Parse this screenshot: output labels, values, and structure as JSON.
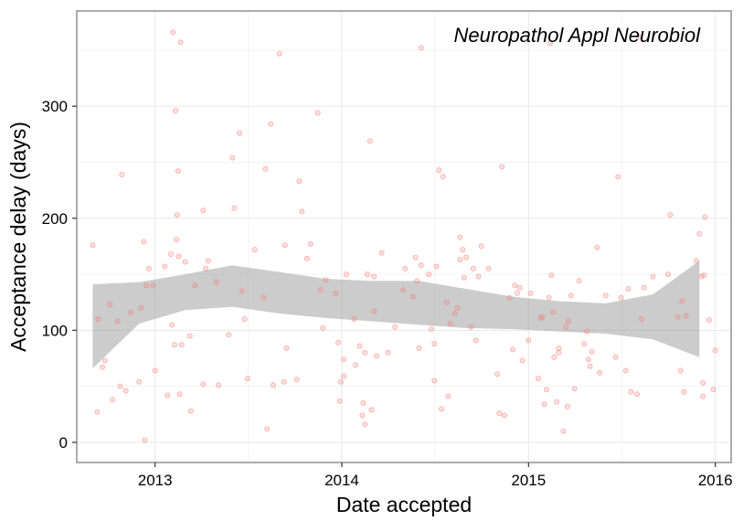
{
  "chart_data": {
    "type": "scatter",
    "annotation": "Neuropathol Appl Neurobiol",
    "xlabel": "Date accepted",
    "ylabel": "Acceptance delay (days)",
    "x_scale": "date",
    "xlim": [
      "2012-08-01",
      "2016-02-01"
    ],
    "ylim": [
      -18,
      385
    ],
    "x_ticks": [
      {
        "value": "2013-01-01",
        "label": "2013"
      },
      {
        "value": "2014-01-01",
        "label": "2014"
      },
      {
        "value": "2015-01-01",
        "label": "2015"
      },
      {
        "value": "2016-01-01",
        "label": "2016"
      }
    ],
    "y_ticks": [
      {
        "value": 0,
        "label": "0"
      },
      {
        "value": 100,
        "label": "100"
      },
      {
        "value": 200,
        "label": "200"
      },
      {
        "value": 300,
        "label": "300"
      }
    ],
    "grid": true,
    "colors": {
      "points": "#f8766d",
      "ribbon": "#999999",
      "grid": "#ebebeb",
      "frame": "#7f7f7f"
    },
    "smooth": {
      "x": [
        "2012-09-01",
        "2012-12-01",
        "2013-03-01",
        "2013-06-01",
        "2013-09-01",
        "2013-12-01",
        "2014-03-01",
        "2014-06-01",
        "2014-09-01",
        "2014-12-01",
        "2015-03-01",
        "2015-06-01",
        "2015-09-01",
        "2015-12-01"
      ],
      "lower": [
        66,
        106,
        118,
        121,
        115,
        111,
        108,
        105,
        102,
        101,
        99,
        97,
        92,
        76
      ],
      "upper": [
        141,
        143,
        150,
        158,
        152,
        146,
        144,
        144,
        137,
        130,
        126,
        124,
        132,
        162
      ]
    },
    "points": [
      {
        "x": "2012-09-01",
        "y": 176
      },
      {
        "x": "2012-09-10",
        "y": 27
      },
      {
        "x": "2012-09-12",
        "y": 110
      },
      {
        "x": "2012-09-20",
        "y": 67
      },
      {
        "x": "2012-09-25",
        "y": 73
      },
      {
        "x": "2012-10-05",
        "y": 123
      },
      {
        "x": "2012-10-10",
        "y": 38
      },
      {
        "x": "2012-10-20",
        "y": 108
      },
      {
        "x": "2012-10-25",
        "y": 50
      },
      {
        "x": "2012-10-28",
        "y": 239
      },
      {
        "x": "2012-11-05",
        "y": 46
      },
      {
        "x": "2012-11-15",
        "y": 116
      },
      {
        "x": "2012-12-01",
        "y": 54
      },
      {
        "x": "2012-12-05",
        "y": 120
      },
      {
        "x": "2012-12-10",
        "y": 179
      },
      {
        "x": "2012-12-12",
        "y": 2
      },
      {
        "x": "2012-12-15",
        "y": 140
      },
      {
        "x": "2012-12-20",
        "y": 155
      },
      {
        "x": "2012-12-28",
        "y": 140
      },
      {
        "x": "2013-01-01",
        "y": 64
      },
      {
        "x": "2013-01-20",
        "y": 157
      },
      {
        "x": "2013-01-25",
        "y": 42
      },
      {
        "x": "2013-02-01",
        "y": 168
      },
      {
        "x": "2013-02-03",
        "y": 105
      },
      {
        "x": "2013-02-05",
        "y": 366
      },
      {
        "x": "2013-02-08",
        "y": 87
      },
      {
        "x": "2013-02-10",
        "y": 296
      },
      {
        "x": "2013-02-12",
        "y": 181
      },
      {
        "x": "2013-02-13",
        "y": 203
      },
      {
        "x": "2013-02-15",
        "y": 242
      },
      {
        "x": "2013-02-16",
        "y": 166
      },
      {
        "x": "2013-02-18",
        "y": 43
      },
      {
        "x": "2013-02-20",
        "y": 357
      },
      {
        "x": "2013-02-22",
        "y": 87
      },
      {
        "x": "2013-03-01",
        "y": 161
      },
      {
        "x": "2013-03-10",
        "y": 95
      },
      {
        "x": "2013-03-12",
        "y": 28
      },
      {
        "x": "2013-03-20",
        "y": 140
      },
      {
        "x": "2013-04-05",
        "y": 207
      },
      {
        "x": "2013-04-05",
        "y": 52
      },
      {
        "x": "2013-04-10",
        "y": 155
      },
      {
        "x": "2013-04-15",
        "y": 162
      },
      {
        "x": "2013-05-01",
        "y": 143
      },
      {
        "x": "2013-05-05",
        "y": 51
      },
      {
        "x": "2013-05-25",
        "y": 96
      },
      {
        "x": "2013-06-01",
        "y": 254
      },
      {
        "x": "2013-06-05",
        "y": 209
      },
      {
        "x": "2013-06-15",
        "y": 276
      },
      {
        "x": "2013-06-20",
        "y": 135
      },
      {
        "x": "2013-06-25",
        "y": 110
      },
      {
        "x": "2013-07-01",
        "y": 57
      },
      {
        "x": "2013-07-15",
        "y": 172
      },
      {
        "x": "2013-08-01",
        "y": 129
      },
      {
        "x": "2013-08-05",
        "y": 244
      },
      {
        "x": "2013-08-08",
        "y": 12
      },
      {
        "x": "2013-08-15",
        "y": 284
      },
      {
        "x": "2013-08-20",
        "y": 51
      },
      {
        "x": "2013-09-01",
        "y": 347
      },
      {
        "x": "2013-09-10",
        "y": 54
      },
      {
        "x": "2013-09-12",
        "y": 176
      },
      {
        "x": "2013-09-15",
        "y": 84
      },
      {
        "x": "2013-10-05",
        "y": 56
      },
      {
        "x": "2013-10-10",
        "y": 233
      },
      {
        "x": "2013-10-15",
        "y": 206
      },
      {
        "x": "2013-10-25",
        "y": 164
      },
      {
        "x": "2013-11-01",
        "y": 177
      },
      {
        "x": "2013-11-15",
        "y": 294
      },
      {
        "x": "2013-11-20",
        "y": 136
      },
      {
        "x": "2013-11-25",
        "y": 102
      },
      {
        "x": "2013-12-01",
        "y": 145
      },
      {
        "x": "2013-12-20",
        "y": 133
      },
      {
        "x": "2013-12-25",
        "y": 89
      },
      {
        "x": "2013-12-28",
        "y": 37
      },
      {
        "x": "2013-12-30",
        "y": 54
      },
      {
        "x": "2014-01-05",
        "y": 59
      },
      {
        "x": "2014-01-05",
        "y": 74
      },
      {
        "x": "2014-01-10",
        "y": 150
      },
      {
        "x": "2014-01-25",
        "y": 110
      },
      {
        "x": "2014-01-28",
        "y": 69
      },
      {
        "x": "2014-02-05",
        "y": 86
      },
      {
        "x": "2014-02-10",
        "y": 24
      },
      {
        "x": "2014-02-12",
        "y": 35
      },
      {
        "x": "2014-02-15",
        "y": 80
      },
      {
        "x": "2014-02-15",
        "y": 16
      },
      {
        "x": "2014-02-20",
        "y": 150
      },
      {
        "x": "2014-02-25",
        "y": 269
      },
      {
        "x": "2014-02-28",
        "y": 29
      },
      {
        "x": "2014-03-05",
        "y": 117
      },
      {
        "x": "2014-03-05",
        "y": 148
      },
      {
        "x": "2014-03-10",
        "y": 77
      },
      {
        "x": "2014-03-20",
        "y": 169
      },
      {
        "x": "2014-04-01",
        "y": 80
      },
      {
        "x": "2014-04-15",
        "y": 103
      },
      {
        "x": "2014-05-01",
        "y": 136
      },
      {
        "x": "2014-05-05",
        "y": 155
      },
      {
        "x": "2014-05-20",
        "y": 130
      },
      {
        "x": "2014-05-25",
        "y": 165
      },
      {
        "x": "2014-05-28",
        "y": 144
      },
      {
        "x": "2014-06-01",
        "y": 84
      },
      {
        "x": "2014-06-05",
        "y": 158
      },
      {
        "x": "2014-06-05",
        "y": 352
      },
      {
        "x": "2014-06-20",
        "y": 150
      },
      {
        "x": "2014-06-25",
        "y": 101
      },
      {
        "x": "2014-07-01",
        "y": 55
      },
      {
        "x": "2014-07-01",
        "y": 88
      },
      {
        "x": "2014-07-05",
        "y": 157
      },
      {
        "x": "2014-07-10",
        "y": 243
      },
      {
        "x": "2014-07-15",
        "y": 30
      },
      {
        "x": "2014-07-18",
        "y": 237
      },
      {
        "x": "2014-07-25",
        "y": 125
      },
      {
        "x": "2014-07-28",
        "y": 41
      },
      {
        "x": "2014-08-01",
        "y": 106
      },
      {
        "x": "2014-08-10",
        "y": 115
      },
      {
        "x": "2014-08-15",
        "y": 120
      },
      {
        "x": "2014-08-20",
        "y": 183
      },
      {
        "x": "2014-08-20",
        "y": 163
      },
      {
        "x": "2014-08-25",
        "y": 172
      },
      {
        "x": "2014-08-28",
        "y": 147
      },
      {
        "x": "2014-09-01",
        "y": 165
      },
      {
        "x": "2014-09-10",
        "y": 103
      },
      {
        "x": "2014-09-15",
        "y": 155
      },
      {
        "x": "2014-09-20",
        "y": 91
      },
      {
        "x": "2014-09-25",
        "y": 148
      },
      {
        "x": "2014-10-01",
        "y": 175
      },
      {
        "x": "2014-10-15",
        "y": 155
      },
      {
        "x": "2014-11-01",
        "y": 61
      },
      {
        "x": "2014-11-05",
        "y": 26
      },
      {
        "x": "2014-11-10",
        "y": 246
      },
      {
        "x": "2014-11-15",
        "y": 24
      },
      {
        "x": "2014-11-25",
        "y": 129
      },
      {
        "x": "2014-12-01",
        "y": 83
      },
      {
        "x": "2014-12-05",
        "y": 140
      },
      {
        "x": "2014-12-10",
        "y": 133
      },
      {
        "x": "2014-12-15",
        "y": 138
      },
      {
        "x": "2014-12-20",
        "y": 73
      },
      {
        "x": "2015-01-01",
        "y": 91
      },
      {
        "x": "2015-01-05",
        "y": 133
      },
      {
        "x": "2015-01-20",
        "y": 57
      },
      {
        "x": "2015-01-25",
        "y": 111
      },
      {
        "x": "2015-01-28",
        "y": 112
      },
      {
        "x": "2015-02-01",
        "y": 34
      },
      {
        "x": "2015-02-05",
        "y": 47
      },
      {
        "x": "2015-02-10",
        "y": 129
      },
      {
        "x": "2015-02-12",
        "y": 356
      },
      {
        "x": "2015-02-15",
        "y": 149
      },
      {
        "x": "2015-02-18",
        "y": 116
      },
      {
        "x": "2015-02-20",
        "y": 76
      },
      {
        "x": "2015-02-25",
        "y": 36
      },
      {
        "x": "2015-03-01",
        "y": 84
      },
      {
        "x": "2015-03-01",
        "y": 80
      },
      {
        "x": "2015-03-10",
        "y": 10
      },
      {
        "x": "2015-03-15",
        "y": 103
      },
      {
        "x": "2015-03-18",
        "y": 32
      },
      {
        "x": "2015-03-20",
        "y": 108
      },
      {
        "x": "2015-03-25",
        "y": 131
      },
      {
        "x": "2015-04-01",
        "y": 48
      },
      {
        "x": "2015-04-10",
        "y": 144
      },
      {
        "x": "2015-04-20",
        "y": 88
      },
      {
        "x": "2015-04-25",
        "y": 99
      },
      {
        "x": "2015-04-28",
        "y": 74
      },
      {
        "x": "2015-05-01",
        "y": 68
      },
      {
        "x": "2015-05-05",
        "y": 81
      },
      {
        "x": "2015-05-15",
        "y": 174
      },
      {
        "x": "2015-05-20",
        "y": 62
      },
      {
        "x": "2015-06-01",
        "y": 131
      },
      {
        "x": "2015-06-20",
        "y": 76
      },
      {
        "x": "2015-06-25",
        "y": 237
      },
      {
        "x": "2015-07-01",
        "y": 129
      },
      {
        "x": "2015-07-10",
        "y": 64
      },
      {
        "x": "2015-07-15",
        "y": 137
      },
      {
        "x": "2015-07-20",
        "y": 45
      },
      {
        "x": "2015-08-01",
        "y": 43
      },
      {
        "x": "2015-08-05",
        "y": 362
      },
      {
        "x": "2015-08-10",
        "y": 110
      },
      {
        "x": "2015-08-15",
        "y": 138
      },
      {
        "x": "2015-09-01",
        "y": 148
      },
      {
        "x": "2015-10-01",
        "y": 150
      },
      {
        "x": "2015-10-05",
        "y": 203
      },
      {
        "x": "2015-10-20",
        "y": 112
      },
      {
        "x": "2015-10-25",
        "y": 64
      },
      {
        "x": "2015-10-28",
        "y": 126
      },
      {
        "x": "2015-11-01",
        "y": 45
      },
      {
        "x": "2015-11-05",
        "y": 113
      },
      {
        "x": "2015-11-25",
        "y": 162
      },
      {
        "x": "2015-12-01",
        "y": 186
      },
      {
        "x": "2015-12-05",
        "y": 148
      },
      {
        "x": "2015-12-08",
        "y": 53
      },
      {
        "x": "2015-12-08",
        "y": 41
      },
      {
        "x": "2015-12-10",
        "y": 149
      },
      {
        "x": "2015-12-12",
        "y": 201
      },
      {
        "x": "2015-12-20",
        "y": 109
      },
      {
        "x": "2015-12-28",
        "y": 47
      },
      {
        "x": "2016-01-01",
        "y": 82
      }
    ]
  }
}
